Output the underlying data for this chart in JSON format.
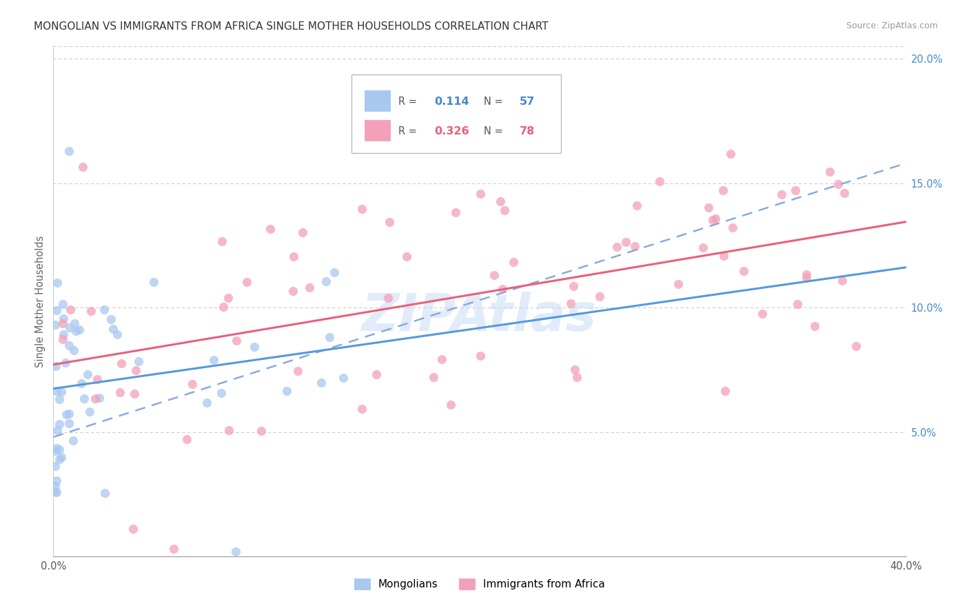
{
  "title": "MONGOLIAN VS IMMIGRANTS FROM AFRICA SINGLE MOTHER HOUSEHOLDS CORRELATION CHART",
  "source": "Source: ZipAtlas.com",
  "ylabel": "Single Mother Households",
  "xlim": [
    0.0,
    0.4
  ],
  "ylim": [
    0.0,
    0.205
  ],
  "yticks": [
    0.05,
    0.1,
    0.15,
    0.2
  ],
  "ytick_labels": [
    "5.0%",
    "10.0%",
    "15.0%",
    "20.0%"
  ],
  "xticks": [
    0.0,
    0.05,
    0.1,
    0.15,
    0.2,
    0.25,
    0.3,
    0.35,
    0.4
  ],
  "xtick_labels": [
    "0.0%",
    "",
    "",
    "",
    "",
    "",
    "",
    "",
    "40.0%"
  ],
  "mongolian_color": "#a8c8f0",
  "africa_color": "#f4a0b8",
  "mongolian_line_color": "#5599dd",
  "africa_line_color": "#e8607a",
  "dash_line_color": "#88aadd",
  "mongolian_R": 0.114,
  "mongolian_N": 57,
  "africa_R": 0.326,
  "africa_N": 78,
  "watermark": "ZIPAtlas",
  "background_color": "#ffffff",
  "grid_color": "#cccccc",
  "legend_R1": "0.114",
  "legend_N1": "57",
  "legend_R2": "0.326",
  "legend_N2": "78"
}
